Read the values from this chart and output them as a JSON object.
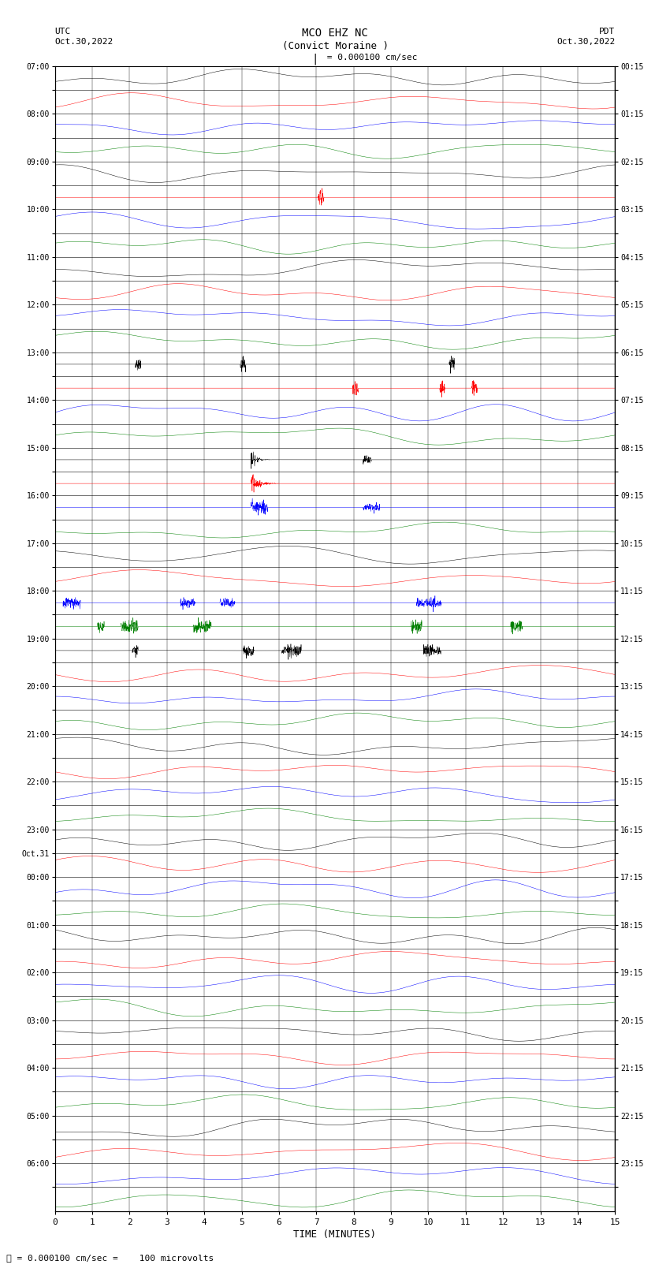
{
  "title_line1": "MCO EHZ NC",
  "title_line2": "(Convict Moraine )",
  "scale_text": "I = 0.000100 cm/sec",
  "footer_text": "ℓ = 0.000100 cm/sec =    100 microvolts",
  "left_label_line1": "UTC",
  "left_label_line2": "Oct.30,2022",
  "right_label_line1": "PDT",
  "right_label_line2": "Oct.30,2022",
  "xlabel": "TIME (MINUTES)",
  "background_color": "#ffffff",
  "trace_colors": [
    "black",
    "red",
    "blue",
    "green"
  ],
  "utc_times": [
    "07:00",
    "",
    "08:00",
    "",
    "09:00",
    "",
    "10:00",
    "",
    "11:00",
    "",
    "12:00",
    "",
    "13:00",
    "",
    "14:00",
    "",
    "15:00",
    "",
    "16:00",
    "",
    "17:00",
    "",
    "18:00",
    "",
    "19:00",
    "",
    "20:00",
    "",
    "21:00",
    "",
    "22:00",
    "",
    "23:00",
    "Oct.31",
    "00:00",
    "",
    "01:00",
    "",
    "02:00",
    "",
    "03:00",
    "",
    "04:00",
    "",
    "05:00",
    "",
    "06:00",
    ""
  ],
  "pdt_times": [
    "00:15",
    "",
    "01:15",
    "",
    "02:15",
    "",
    "03:15",
    "",
    "04:15",
    "",
    "05:15",
    "",
    "06:15",
    "",
    "07:15",
    "",
    "08:15",
    "",
    "09:15",
    "",
    "10:15",
    "",
    "11:15",
    "",
    "12:15",
    "",
    "13:15",
    "",
    "14:15",
    "",
    "15:15",
    "",
    "16:15",
    "",
    "17:15",
    "",
    "18:15",
    "",
    "19:15",
    "",
    "20:15",
    "",
    "21:15",
    "",
    "22:15",
    "",
    "23:15",
    ""
  ],
  "n_rows": 48,
  "minutes": 15,
  "seed": 42,
  "fig_width": 8.5,
  "fig_height": 16.13,
  "dpi": 100
}
